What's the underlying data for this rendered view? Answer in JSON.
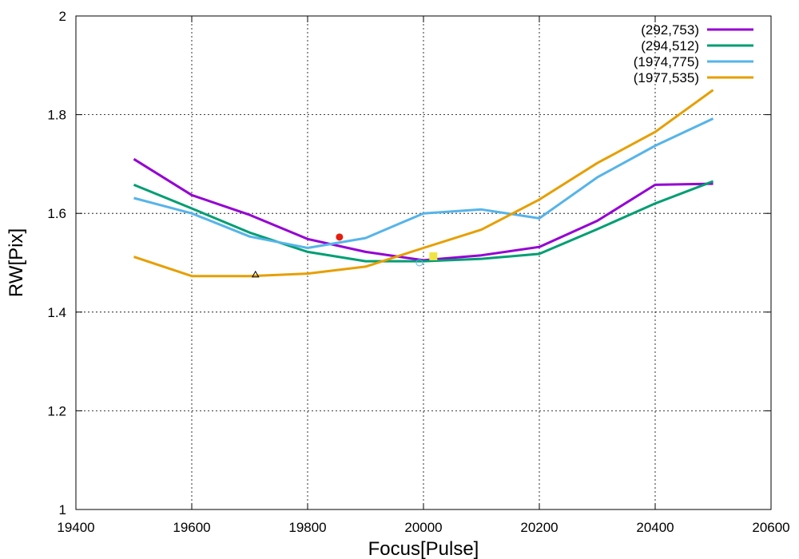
{
  "chart_data": {
    "type": "line",
    "title": "",
    "xlabel": "Focus[Pulse]",
    "ylabel": "RW[Pix]",
    "xlim": [
      19400,
      20600
    ],
    "ylim": [
      1,
      2
    ],
    "xticks": [
      19400,
      19600,
      19800,
      20000,
      20200,
      20400,
      20600
    ],
    "yticks": [
      1,
      1.2,
      1.4,
      1.6,
      1.8,
      2
    ],
    "ytick_labels": [
      "1",
      "1.2",
      "1.4",
      "1.6",
      "1.8",
      "2"
    ],
    "grid": true,
    "legend_position": "top-right",
    "x": [
      19500,
      19600,
      19700,
      19800,
      19900,
      20000,
      20100,
      20200,
      20300,
      20400,
      20500
    ],
    "series": [
      {
        "name": "(292,753)",
        "color": "#9400d3",
        "values": [
          1.71,
          1.637,
          1.597,
          1.548,
          1.522,
          1.505,
          1.515,
          1.532,
          1.585,
          1.658,
          1.66
        ]
      },
      {
        "name": "(294,512)",
        "color": "#009e73",
        "values": [
          1.658,
          1.61,
          1.561,
          1.522,
          1.503,
          1.503,
          1.508,
          1.518,
          1.568,
          1.62,
          1.665
        ]
      },
      {
        "name": "(1974,775)",
        "color": "#56b4e9",
        "values": [
          1.631,
          1.6,
          1.553,
          1.53,
          1.55,
          1.6,
          1.608,
          1.59,
          1.673,
          1.737,
          1.792
        ]
      },
      {
        "name": "(1977,535)",
        "color": "#e69f00",
        "values": [
          1.512,
          1.473,
          1.473,
          1.478,
          1.492,
          1.53,
          1.567,
          1.628,
          1.702,
          1.765,
          1.85
        ]
      }
    ],
    "markers": [
      {
        "shape": "circle-filled",
        "x": 19855,
        "y": 1.552,
        "color": "#e51e10"
      },
      {
        "shape": "square-filled",
        "x": 20017,
        "y": 1.513,
        "color": "#f0e442"
      },
      {
        "shape": "triangle-open",
        "x": 19710,
        "y": 1.476,
        "color": "#000000"
      },
      {
        "shape": "circle-open",
        "x": 19993,
        "y": 1.5,
        "color": "#56b4e9"
      }
    ]
  }
}
